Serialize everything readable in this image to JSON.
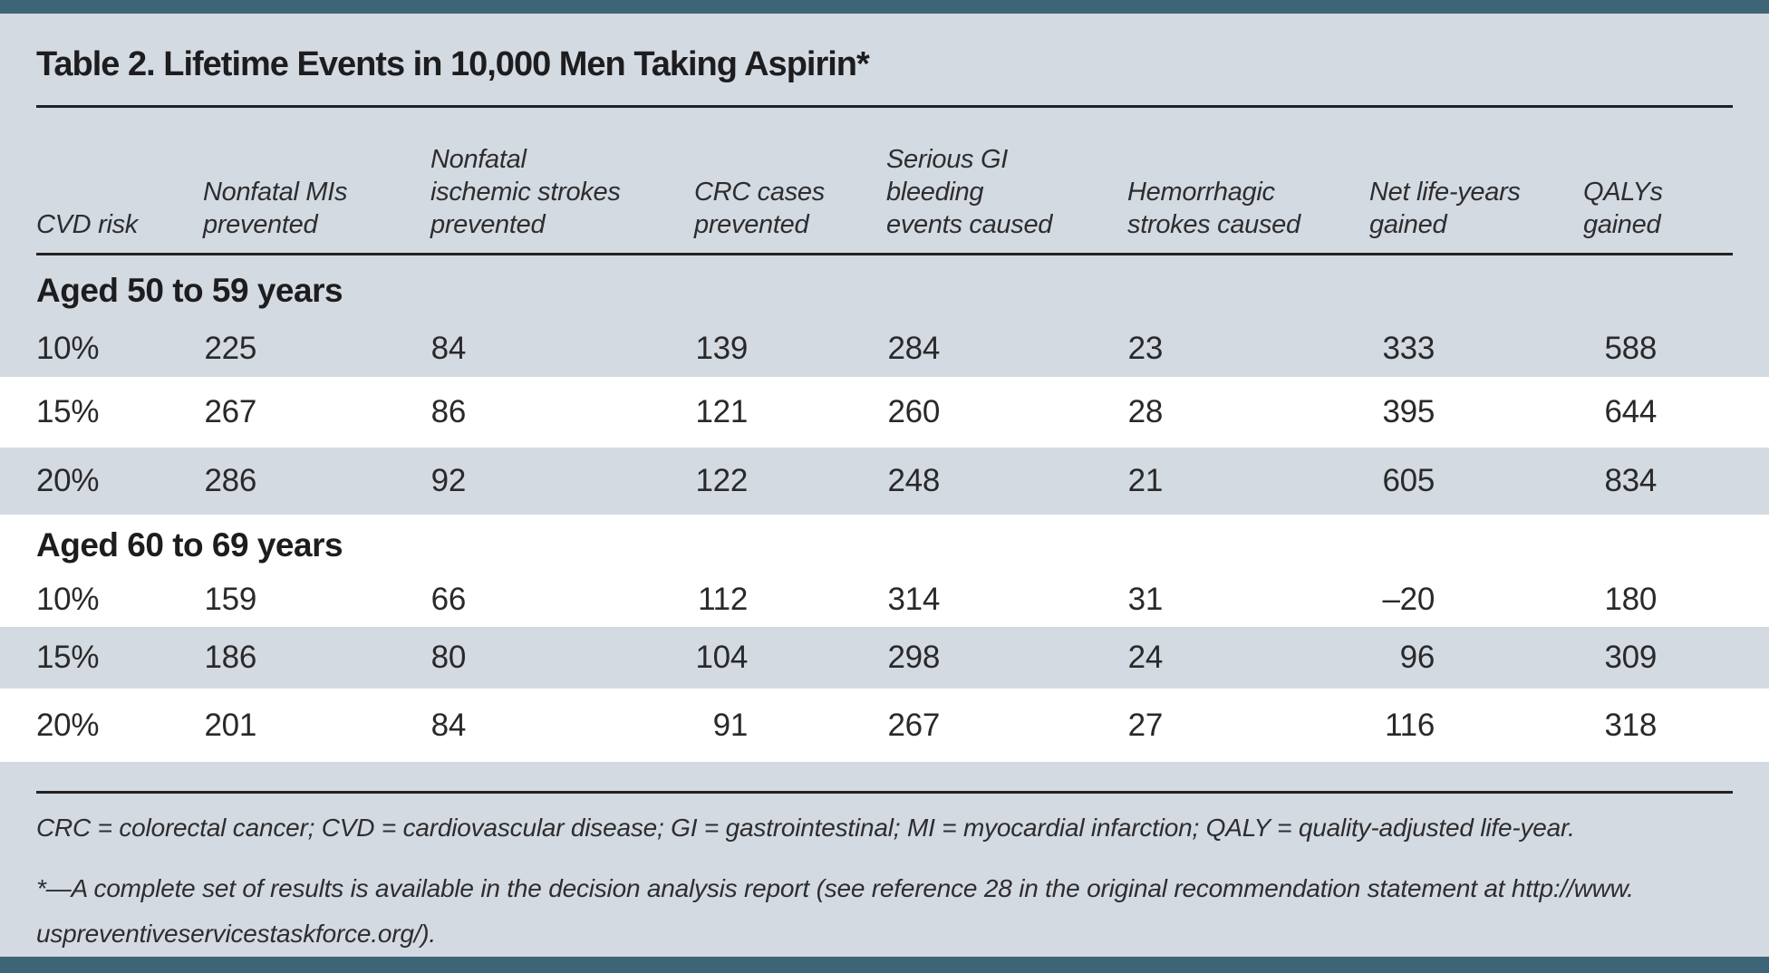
{
  "title": "Table 2. Lifetime Events in 10,000 Men Taking Aspirin*",
  "columns": [
    {
      "lines": [
        "CVD risk"
      ]
    },
    {
      "lines": [
        "Nonfatal MIs",
        "prevented"
      ]
    },
    {
      "lines": [
        "Nonfatal",
        "ischemic strokes",
        "prevented"
      ]
    },
    {
      "lines": [
        "CRC cases",
        "prevented"
      ]
    },
    {
      "lines": [
        "Serious GI",
        "bleeding",
        "events caused"
      ]
    },
    {
      "lines": [
        "Hemorrhagic",
        "strokes caused"
      ]
    },
    {
      "lines": [
        "Net life-years",
        "gained"
      ]
    },
    {
      "lines": [
        "QALYs",
        "gained"
      ]
    }
  ],
  "sections": [
    {
      "label": "Aged 50 to 59 years",
      "rows": [
        {
          "risk": "10%",
          "values": [
            "225",
            "84",
            "139",
            "284",
            "23",
            "333",
            "588"
          ]
        },
        {
          "risk": "15%",
          "values": [
            "267",
            "86",
            "121",
            "260",
            "28",
            "395",
            "644"
          ]
        },
        {
          "risk": "20%",
          "values": [
            "286",
            "92",
            "122",
            "248",
            "21",
            "605",
            "834"
          ]
        }
      ]
    },
    {
      "label": "Aged 60 to 69 years",
      "rows": [
        {
          "risk": "10%",
          "values": [
            "159",
            "66",
            "112",
            "314",
            "31",
            "–20",
            "180"
          ]
        },
        {
          "risk": "15%",
          "values": [
            "186",
            "80",
            "104",
            "298",
            "24",
            "96",
            "309"
          ]
        },
        {
          "risk": "20%",
          "values": [
            "201",
            "84",
            "91",
            "267",
            "27",
            "116",
            "318"
          ]
        }
      ]
    }
  ],
  "footnotes": {
    "abbreviations": "CRC = colorectal cancer; CVD = cardiovascular disease; GI = gastrointestinal; MI = myocardial infarction; QALY = quality-adjusted life-year.",
    "asterisk_line1": "*—A complete set of results is available in the decision analysis report (see reference 28 in the original recommendation statement at http://www.",
    "asterisk_line2": "uspreventiveservicestaskforce.org/)."
  },
  "colors": {
    "accent_bar": "#3e6577",
    "page_background": "#d4dae1",
    "white_row": "#ffffff",
    "rule": "#222225",
    "text": "#29292b"
  }
}
